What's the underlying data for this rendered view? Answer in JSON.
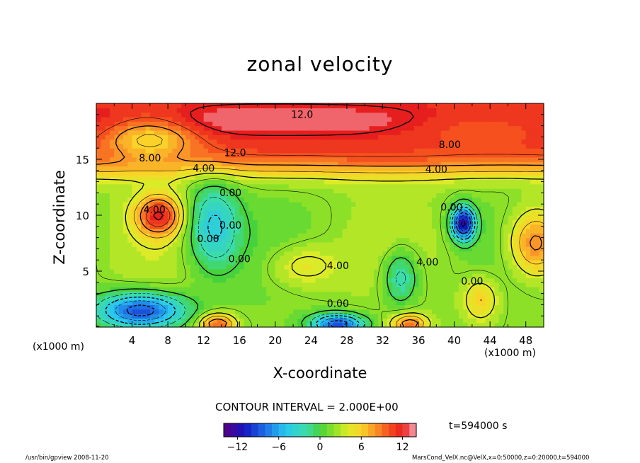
{
  "chart_data": {
    "type": "heatmap",
    "title": "zonal velocity",
    "xlabel": "X-coordinate",
    "ylabel": "Z-coordinate",
    "x_unit": "(x1000 m)",
    "xlim": [
      0,
      50
    ],
    "ylim": [
      0,
      20
    ],
    "x_ticks": [
      4,
      8,
      12,
      16,
      20,
      24,
      28,
      32,
      36,
      40,
      44,
      48
    ],
    "y_ticks": [
      5,
      10,
      15
    ],
    "contour_interval_label": "CONTOUR INTERVAL = 2.000E+00",
    "contour_labels": [
      {
        "text": "12.0",
        "x": 23.0,
        "z": 18.7
      },
      {
        "text": "8.00",
        "x": 39.5,
        "z": 16.0
      },
      {
        "text": "12.0",
        "x": 15.5,
        "z": 15.3
      },
      {
        "text": "8.00",
        "x": 6.0,
        "z": 14.8
      },
      {
        "text": "4.00",
        "x": 12.0,
        "z": 13.9
      },
      {
        "text": "4.00",
        "x": 38.0,
        "z": 13.8
      },
      {
        "text": "0.00",
        "x": 15.0,
        "z": 11.7
      },
      {
        "text": "4.00",
        "x": 6.5,
        "z": 10.2
      },
      {
        "text": "0.00",
        "x": 39.7,
        "z": 10.4
      },
      {
        "text": "0.00",
        "x": 15.0,
        "z": 8.8
      },
      {
        "text": "0.00",
        "x": 12.5,
        "z": 7.6
      },
      {
        "text": "0.00",
        "x": 16.0,
        "z": 5.8
      },
      {
        "text": "4.00",
        "x": 27.0,
        "z": 5.2
      },
      {
        "text": "4.00",
        "x": 37.0,
        "z": 5.5
      },
      {
        "text": "0.00",
        "x": 42.0,
        "z": 3.8
      },
      {
        "text": "0.00",
        "x": 27.0,
        "z": 1.8
      }
    ],
    "colorbar": {
      "min": -14,
      "max": 14,
      "step": 1,
      "tick_values": [
        -12,
        -6,
        0,
        6,
        12
      ],
      "tick_labels": [
        "−12",
        "−6",
        "0",
        "6",
        "12"
      ]
    },
    "features": [
      {
        "name": "upper jet",
        "x": 20,
        "z": 18.5,
        "value": 12.5,
        "sx": 28,
        "sz": 1.5
      },
      {
        "name": "upper jet right",
        "x": 42,
        "z": 18.0,
        "value": 8,
        "sx": 8,
        "sz": 1.5
      },
      {
        "name": "left upper jet",
        "x": 6,
        "z": 17.0,
        "value": 4,
        "sx": 5,
        "sz": 2
      },
      {
        "name": "strong positive max",
        "x": 7,
        "z": 10.0,
        "value": 11,
        "sx": 2.6,
        "sz": 1.8
      },
      {
        "name": "negative band",
        "x": 13,
        "z": 9,
        "value": -5,
        "sx": 3,
        "sz": 4
      },
      {
        "name": "negative min right",
        "x": 41,
        "z": 9.3,
        "value": -13,
        "sx": 1.3,
        "sz": 1.5
      },
      {
        "name": "positive right edge",
        "x": 49,
        "z": 7.5,
        "value": 9,
        "sx": 3,
        "sz": 3
      },
      {
        "name": "bottom negative left",
        "x": 5,
        "z": 1.5,
        "value": -10,
        "sx": 5,
        "sz": 1.6
      },
      {
        "name": "bottom negative center",
        "x": 27,
        "z": 0.3,
        "value": -10,
        "sx": 3,
        "sz": 0.9
      },
      {
        "name": "bottom positive",
        "x": 13.5,
        "z": 0.3,
        "value": 10,
        "sx": 2,
        "sz": 0.9
      },
      {
        "name": "bottom positive right",
        "x": 35,
        "z": 0.3,
        "value": 9,
        "sx": 2,
        "sz": 0.9
      },
      {
        "name": "mid positive",
        "x": 23,
        "z": 5.5,
        "value": 5,
        "sx": 4,
        "sz": 2
      },
      {
        "name": "mid positive right",
        "x": 43,
        "z": 2.5,
        "value": 6,
        "sx": 2,
        "sz": 2
      },
      {
        "name": "mid negative",
        "x": 34,
        "z": 4.5,
        "value": -4,
        "sx": 2,
        "sz": 2.5
      }
    ],
    "grid": false,
    "legend": "bottom"
  },
  "time_label": "t=594000 s",
  "program_label": "/usr/bin/gpview  2008-11-20",
  "meta_label": "MarsCond_VelX.nc@VelX,x=0:50000,z=0:20000,t=594000"
}
